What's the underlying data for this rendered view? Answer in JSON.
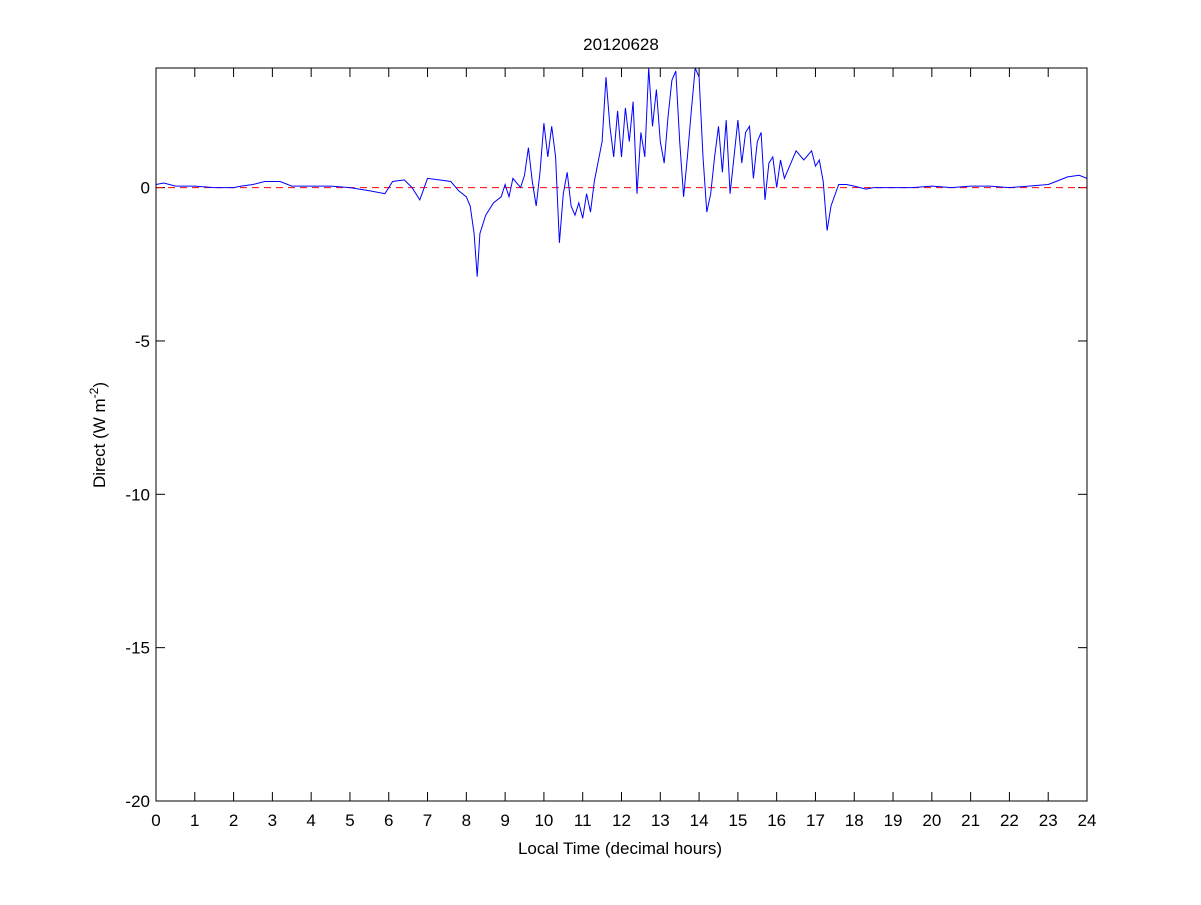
{
  "chart_data": {
    "type": "line",
    "title": "20120628",
    "xlabel": "Local Time (decimal hours)",
    "ylabel": [
      "Direct (W m",
      "-2",
      ")"
    ],
    "x": [
      0,
      0.2,
      0.5,
      1,
      1.5,
      2,
      2.2,
      2.5,
      2.8,
      3.2,
      3.5,
      4,
      4.5,
      5,
      5.5,
      5.9,
      6.1,
      6.4,
      6.6,
      6.8,
      7,
      7.3,
      7.6,
      7.8,
      8.0,
      8.1,
      8.2,
      8.28,
      8.35,
      8.5,
      8.7,
      8.9,
      9.0,
      9.1,
      9.2,
      9.4,
      9.5,
      9.6,
      9.7,
      9.8,
      9.9,
      10.0,
      10.1,
      10.2,
      10.3,
      10.4,
      10.5,
      10.6,
      10.7,
      10.8,
      10.9,
      11.0,
      11.1,
      11.2,
      11.3,
      11.5,
      11.6,
      11.7,
      11.8,
      11.9,
      12.0,
      12.1,
      12.2,
      12.3,
      12.4,
      12.5,
      12.6,
      12.7,
      12.8,
      12.9,
      13.0,
      13.1,
      13.2,
      13.3,
      13.4,
      13.5,
      13.6,
      13.7,
      13.8,
      13.9,
      14.0,
      14.1,
      14.2,
      14.3,
      14.4,
      14.5,
      14.6,
      14.7,
      14.8,
      14.9,
      15.0,
      15.1,
      15.2,
      15.3,
      15.4,
      15.5,
      15.6,
      15.7,
      15.8,
      15.9,
      16.0,
      16.1,
      16.2,
      16.3,
      16.5,
      16.7,
      16.9,
      17.0,
      17.1,
      17.2,
      17.3,
      17.4,
      17.6,
      17.8,
      18.0,
      18.3,
      18.5,
      19,
      19.5,
      20,
      20.5,
      21,
      21.5,
      22,
      22.5,
      23,
      23.2,
      23.5,
      23.8,
      24
    ],
    "series": [
      {
        "name": "Direct",
        "color": "#0000ff",
        "values": [
          0.1,
          0.15,
          0.05,
          0.05,
          0,
          0,
          0.05,
          0.1,
          0.2,
          0.2,
          0.05,
          0.05,
          0.05,
          0,
          -0.1,
          -0.2,
          0.2,
          0.25,
          0,
          -0.4,
          0.3,
          0.25,
          0.2,
          -0.1,
          -0.3,
          -0.6,
          -1.5,
          -2.9,
          -1.5,
          -0.9,
          -0.5,
          -0.3,
          0.1,
          -0.3,
          0.3,
          0.0,
          0.4,
          1.3,
          0.2,
          -0.6,
          0.5,
          2.1,
          1.0,
          2.0,
          1.0,
          -1.8,
          -0.2,
          0.5,
          -0.6,
          -0.9,
          -0.5,
          -1.0,
          -0.2,
          -0.8,
          0.2,
          1.5,
          3.6,
          2.0,
          1.0,
          2.5,
          1.0,
          2.6,
          1.5,
          2.8,
          -0.2,
          1.8,
          1.0,
          3.9,
          2.0,
          3.2,
          1.5,
          0.8,
          2.3,
          3.5,
          3.8,
          1.5,
          -0.3,
          1.0,
          2.5,
          3.9,
          3.6,
          1.0,
          -0.8,
          -0.2,
          1.0,
          2.0,
          0.5,
          2.2,
          -0.2,
          1.0,
          2.2,
          0.8,
          1.8,
          2.0,
          0.3,
          1.5,
          1.8,
          -0.4,
          0.8,
          1.0,
          0.0,
          0.9,
          0.3,
          0.6,
          1.2,
          0.9,
          1.2,
          0.7,
          0.9,
          0.2,
          -1.4,
          -0.6,
          0.1,
          0.1,
          0.05,
          -0.05,
          0,
          0,
          0,
          0.05,
          0,
          0.05,
          0.05,
          0,
          0.05,
          0.1,
          0.2,
          0.35,
          0.4,
          0.3
        ]
      }
    ],
    "reference_line": {
      "value": 0,
      "color": "#ff0000"
    },
    "xlim": [
      0,
      24
    ],
    "xticks": [
      0,
      1,
      2,
      3,
      4,
      5,
      6,
      7,
      8,
      9,
      10,
      11,
      12,
      13,
      14,
      15,
      16,
      17,
      18,
      19,
      20,
      21,
      22,
      23,
      24
    ],
    "ylim": [
      -20,
      3.9
    ],
    "yticks": [
      -20,
      -15,
      -10,
      -5,
      0
    ]
  }
}
